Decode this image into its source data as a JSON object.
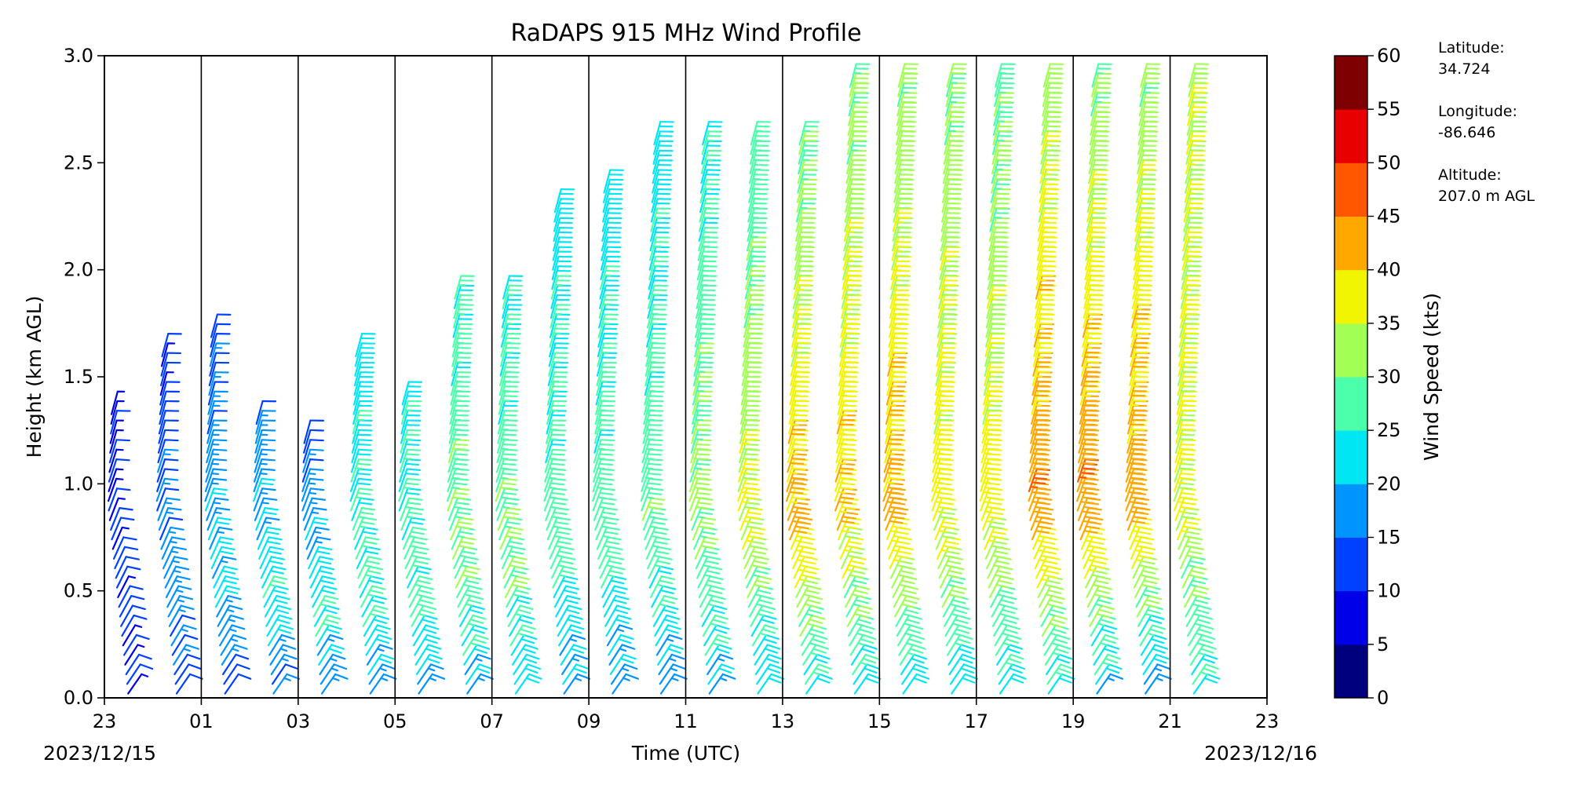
{
  "chart_data": {
    "type": "wind_barb_profile",
    "title": "RaDAPS 915 MHz Wind Profile",
    "xlabel": "Time (UTC)",
    "ylabel": "Height (km AGL)",
    "x_tick_labels": [
      "23",
      "01",
      "03",
      "05",
      "07",
      "09",
      "11",
      "13",
      "15",
      "17",
      "19",
      "21",
      "23"
    ],
    "x_start_date": "2023/12/15",
    "x_end_date": "2023/12/16",
    "y_ticks": [
      "0.0",
      "0.5",
      "1.0",
      "1.5",
      "2.0",
      "2.5",
      "3.0"
    ],
    "ylim": [
      0,
      3
    ],
    "colorbar": {
      "label": "Wind Speed (kts)",
      "ticks": [
        "0",
        "5",
        "10",
        "15",
        "20",
        "25",
        "30",
        "35",
        "40",
        "45",
        "50",
        "55",
        "60"
      ],
      "range": [
        0,
        60
      ],
      "colors": [
        "#00007f",
        "#0000e8",
        "#0040ff",
        "#0094ff",
        "#00e6f2",
        "#4cffaa",
        "#a2ff54",
        "#f2f500",
        "#ffa800",
        "#ff5600",
        "#e80000",
        "#7f0000"
      ]
    },
    "station": {
      "latitude_label": "Latitude:",
      "latitude": "34.724",
      "longitude_label": "Longitude:",
      "longitude": "-86.646",
      "altitude_label": "Altitude:",
      "altitude": "207.0 m AGL"
    },
    "profiles": [
      {
        "hour_offset": 0.5,
        "top_km": 1.35,
        "base_speed": 10,
        "peak_speed": 12,
        "top_speed": 8
      },
      {
        "hour_offset": 1.5,
        "top_km": 1.6,
        "base_speed": 12,
        "peak_speed": 18,
        "top_speed": 10
      },
      {
        "hour_offset": 2.5,
        "top_km": 1.7,
        "base_speed": 12,
        "peak_speed": 22,
        "top_speed": 12
      },
      {
        "hour_offset": 3.5,
        "top_km": 1.3,
        "base_speed": 14,
        "peak_speed": 24,
        "top_speed": 16
      },
      {
        "hour_offset": 4.5,
        "top_km": 1.2,
        "base_speed": 16,
        "peak_speed": 25,
        "top_speed": 12
      },
      {
        "hour_offset": 5.5,
        "top_km": 1.6,
        "base_speed": 18,
        "peak_speed": 26,
        "top_speed": 22
      },
      {
        "hour_offset": 6.5,
        "top_km": 1.4,
        "base_speed": 18,
        "peak_speed": 27,
        "top_speed": 23
      },
      {
        "hour_offset": 7.5,
        "top_km": 1.9,
        "base_speed": 20,
        "peak_speed": 30,
        "top_speed": 25
      },
      {
        "hour_offset": 8.5,
        "top_km": 1.9,
        "base_speed": 20,
        "peak_speed": 30,
        "top_speed": 24
      },
      {
        "hour_offset": 9.5,
        "top_km": 2.3,
        "base_speed": 18,
        "peak_speed": 28,
        "top_speed": 22
      },
      {
        "hour_offset": 10.5,
        "top_km": 2.4,
        "base_speed": 18,
        "peak_speed": 28,
        "top_speed": 22
      },
      {
        "hour_offset": 11.5,
        "top_km": 2.6,
        "base_speed": 18,
        "peak_speed": 29,
        "top_speed": 22
      },
      {
        "hour_offset": 12.5,
        "top_km": 2.6,
        "base_speed": 20,
        "peak_speed": 32,
        "top_speed": 24
      },
      {
        "hour_offset": 13.5,
        "top_km": 2.6,
        "base_speed": 20,
        "peak_speed": 36,
        "top_speed": 26
      },
      {
        "hour_offset": 14.5,
        "top_km": 2.6,
        "base_speed": 22,
        "peak_speed": 42,
        "top_speed": 28
      },
      {
        "hour_offset": 15.5,
        "top_km": 2.9,
        "base_speed": 22,
        "peak_speed": 40,
        "top_speed": 30
      },
      {
        "hour_offset": 16.5,
        "top_km": 2.9,
        "base_speed": 22,
        "peak_speed": 42,
        "top_speed": 30
      },
      {
        "hour_offset": 17.5,
        "top_km": 2.9,
        "base_speed": 22,
        "peak_speed": 38,
        "top_speed": 30
      },
      {
        "hour_offset": 18.5,
        "top_km": 2.9,
        "base_speed": 22,
        "peak_speed": 38,
        "top_speed": 28
      },
      {
        "hour_offset": 19.5,
        "top_km": 2.9,
        "base_speed": 22,
        "peak_speed": 44,
        "top_speed": 32
      },
      {
        "hour_offset": 20.5,
        "top_km": 2.9,
        "base_speed": 20,
        "peak_speed": 44,
        "top_speed": 30
      },
      {
        "hour_offset": 21.5,
        "top_km": 2.9,
        "base_speed": 18,
        "peak_speed": 44,
        "top_speed": 30
      },
      {
        "hour_offset": 22.5,
        "top_km": 2.9,
        "base_speed": 24,
        "peak_speed": 36,
        "top_speed": 34
      }
    ]
  }
}
